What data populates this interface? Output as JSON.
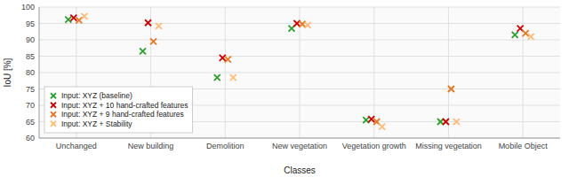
{
  "chart_data": {
    "type": "scatter",
    "categories": [
      "Unchanged",
      "New building",
      "Demolition",
      "New vegetation",
      "Vegetation growth",
      "Missing vegetation",
      "Mobile Object"
    ],
    "series": [
      {
        "name": "Input: XYZ (baseline)",
        "color": "#2ca02c",
        "values": [
          96.2,
          86.5,
          78.5,
          93.5,
          65.5,
          65.0,
          91.5
        ]
      },
      {
        "name": "Input: XYZ + 10 hand-crafted features",
        "color": "#cc0000",
        "values": [
          96.7,
          95.2,
          84.5,
          95.0,
          65.8,
          65.0,
          93.5
        ]
      },
      {
        "name": "Input: XYZ + 9 hand-crafted features",
        "color": "#e87722",
        "values": [
          96.0,
          89.5,
          84.0,
          94.8,
          65.0,
          75.0,
          92.0
        ]
      },
      {
        "name": "Input: XYZ + Stability",
        "color": "#ffbb78",
        "values": [
          97.2,
          94.2,
          78.5,
          94.5,
          63.5,
          65.0,
          91.0
        ]
      }
    ],
    "xlabel": "Classes",
    "ylabel": "IoU [%]",
    "ylim": [
      60,
      100
    ],
    "yticks": [
      60,
      65,
      70,
      75,
      80,
      85,
      90,
      95,
      100
    ],
    "grid": true,
    "legend": "lower left",
    "marker": "x"
  }
}
